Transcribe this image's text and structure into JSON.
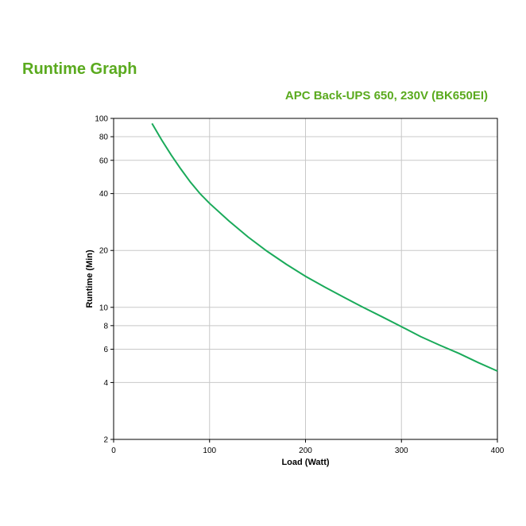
{
  "page": {
    "heading": "Runtime Graph",
    "subheading": "APC Back-UPS 650, 230V (BK650EI)",
    "accent_color": "#5aaa1e"
  },
  "chart_data": {
    "type": "line",
    "xlabel": "Load (Watt)",
    "ylabel": "Runtime (Min)",
    "xlim": [
      0,
      400
    ],
    "ylim": [
      2,
      100
    ],
    "yscale": "log",
    "grid": true,
    "line_color": "#1aaa5a",
    "xticks": [
      0,
      100,
      200,
      300,
      400
    ],
    "yticks": [
      2,
      4,
      6,
      8,
      10,
      20,
      40,
      60,
      80,
      100
    ],
    "series": [
      {
        "x": [
          40,
          50,
          60,
          70,
          80,
          90,
          100,
          120,
          140,
          160,
          180,
          200,
          220,
          240,
          260,
          280,
          300,
          320,
          340,
          360,
          380,
          400
        ],
        "y": [
          94,
          77,
          64,
          54,
          46,
          40,
          35.5,
          28.7,
          23.6,
          19.8,
          16.9,
          14.6,
          12.8,
          11.3,
          10.0,
          8.9,
          7.9,
          7.0,
          6.3,
          5.7,
          5.1,
          4.6
        ]
      }
    ]
  }
}
